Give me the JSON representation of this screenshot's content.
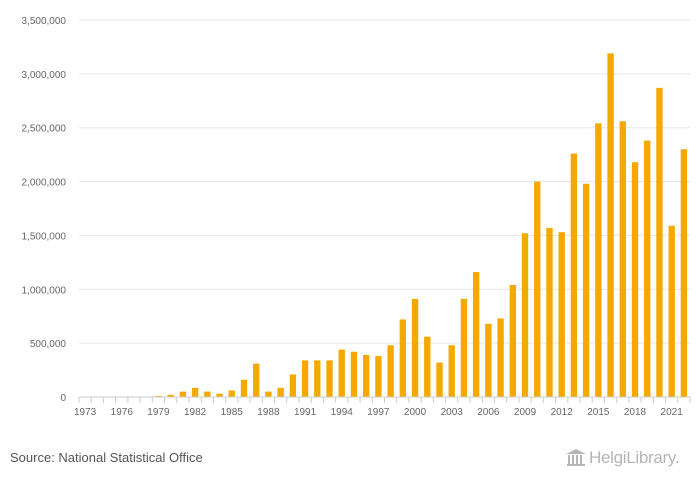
{
  "chart_data": {
    "type": "bar",
    "title": "",
    "xlabel": "",
    "ylabel": "",
    "ylim": [
      0,
      3500000
    ],
    "yticks": [
      "0",
      "500,000",
      "1,000,000",
      "1,500,000",
      "2,000,000",
      "2,500,000",
      "3,000,000",
      "3,500,000"
    ],
    "xtick_labels": [
      "1973",
      "1976",
      "1979",
      "1982",
      "1985",
      "1988",
      "1991",
      "1994",
      "1997",
      "2000",
      "2003",
      "2006",
      "2009",
      "2012",
      "2015",
      "2018",
      "2021"
    ],
    "grid": "horizontal",
    "bar_color": "#f5a800",
    "categories": [
      1973,
      1974,
      1975,
      1976,
      1977,
      1978,
      1979,
      1980,
      1981,
      1982,
      1983,
      1984,
      1985,
      1986,
      1987,
      1988,
      1989,
      1990,
      1991,
      1992,
      1993,
      1994,
      1995,
      1996,
      1997,
      1998,
      1999,
      2000,
      2001,
      2002,
      2003,
      2004,
      2005,
      2006,
      2007,
      2008,
      2009,
      2010,
      2011,
      2012,
      2013,
      2014,
      2015,
      2016,
      2017,
      2018,
      2019,
      2020,
      2021,
      2022
    ],
    "values": [
      0,
      0,
      0,
      0,
      0,
      0,
      10000,
      20000,
      50000,
      85000,
      50000,
      30000,
      60000,
      160000,
      310000,
      50000,
      85000,
      210000,
      340000,
      340000,
      340000,
      440000,
      420000,
      390000,
      380000,
      480000,
      720000,
      910000,
      560000,
      320000,
      480000,
      910000,
      1160000,
      680000,
      730000,
      1040000,
      1520000,
      2000000,
      1570000,
      1530000,
      2260000,
      1980000,
      2540000,
      3190000,
      2560000,
      2180000,
      2380000,
      2870000,
      1590000,
      2300000
    ]
  },
  "source": "Source: National Statistical Office",
  "brand": "HelgiLibrary."
}
